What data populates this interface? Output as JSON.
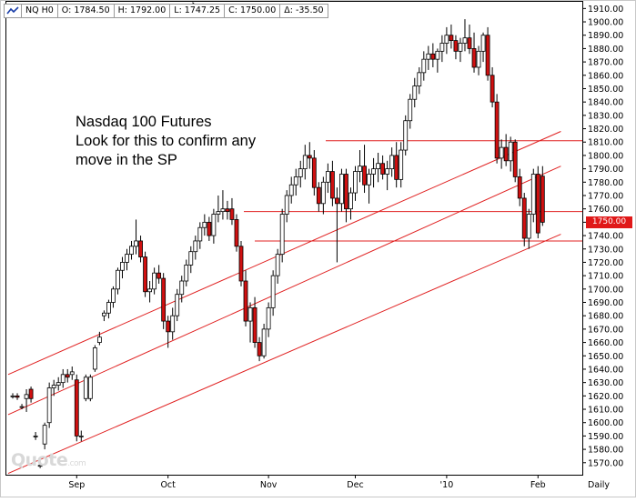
{
  "header": {
    "symbol": "NQ H0",
    "open": "O: 1784.50",
    "high": "H: 1792.00",
    "low": "L: 1747.25",
    "close": "C: 1750.00",
    "change": "Δ: -35.50"
  },
  "annotation": "Nasdaq 100 Futures\nLook for this to confirm any\nmove in the SP",
  "last_price_label": "1750.00",
  "watermark": {
    "brand": "Quote",
    "suffix": ".com"
  },
  "colors": {
    "up": "#ffffff",
    "down": "#d01010",
    "trend_lines": "#e02020",
    "last_price": "#e01818",
    "border": "#000000"
  },
  "chart_data": {
    "type": "candlestick",
    "symbol": "NQ H0",
    "interval": "Daily",
    "ylim": [
      1561,
      1915
    ],
    "y_ticks": [
      1570,
      1580,
      1590,
      1600,
      1610,
      1620,
      1630,
      1640,
      1650,
      1660,
      1670,
      1680,
      1690,
      1700,
      1710,
      1720,
      1730,
      1740,
      1750,
      1760,
      1770,
      1780,
      1790,
      1800,
      1810,
      1820,
      1830,
      1840,
      1850,
      1860,
      1870,
      1880,
      1890,
      1900,
      1910
    ],
    "x_ticks": [
      {
        "label": "Sep",
        "index": 14
      },
      {
        "label": "Oct",
        "index": 34
      },
      {
        "label": "Nov",
        "index": 56
      },
      {
        "label": "Dec",
        "index": 75
      },
      {
        "label": "'10",
        "index": 95
      },
      {
        "label": "Feb",
        "index": 115
      }
    ],
    "x_axis_label": "Daily",
    "candles": [
      {
        "o": 1620,
        "h": 1622,
        "l": 1618,
        "c": 1620
      },
      {
        "o": 1620,
        "h": 1622,
        "l": 1617,
        "c": 1619
      },
      {
        "o": 1612,
        "h": 1614,
        "l": 1610,
        "c": 1612
      },
      {
        "o": 1618,
        "h": 1625,
        "l": 1608,
        "c": 1621
      },
      {
        "o": 1625,
        "h": 1627,
        "l": 1615,
        "c": 1618
      },
      {
        "o": 1590,
        "h": 1593,
        "l": 1587,
        "c": 1590
      },
      {
        "o": 1568,
        "h": 1570,
        "l": 1566,
        "c": 1568
      },
      {
        "o": 1584,
        "h": 1600,
        "l": 1580,
        "c": 1598
      },
      {
        "o": 1600,
        "h": 1630,
        "l": 1596,
        "c": 1626
      },
      {
        "o": 1626,
        "h": 1632,
        "l": 1620,
        "c": 1628
      },
      {
        "o": 1628,
        "h": 1634,
        "l": 1624,
        "c": 1630
      },
      {
        "o": 1630,
        "h": 1640,
        "l": 1626,
        "c": 1636
      },
      {
        "o": 1636,
        "h": 1640,
        "l": 1630,
        "c": 1634
      },
      {
        "o": 1636,
        "h": 1642,
        "l": 1632,
        "c": 1638
      },
      {
        "o": 1632,
        "h": 1636,
        "l": 1586,
        "c": 1590
      },
      {
        "o": 1590,
        "h": 1594,
        "l": 1586,
        "c": 1590
      },
      {
        "o": 1618,
        "h": 1636,
        "l": 1616,
        "c": 1634
      },
      {
        "o": 1618,
        "h": 1636,
        "l": 1616,
        "c": 1634
      },
      {
        "o": 1640,
        "h": 1658,
        "l": 1638,
        "c": 1656
      },
      {
        "o": 1660,
        "h": 1668,
        "l": 1658,
        "c": 1664
      },
      {
        "o": 1680,
        "h": 1684,
        "l": 1676,
        "c": 1682
      },
      {
        "o": 1682,
        "h": 1692,
        "l": 1678,
        "c": 1690
      },
      {
        "o": 1690,
        "h": 1702,
        "l": 1686,
        "c": 1700
      },
      {
        "o": 1700,
        "h": 1716,
        "l": 1696,
        "c": 1714
      },
      {
        "o": 1714,
        "h": 1724,
        "l": 1708,
        "c": 1720
      },
      {
        "o": 1720,
        "h": 1730,
        "l": 1714,
        "c": 1726
      },
      {
        "o": 1726,
        "h": 1736,
        "l": 1722,
        "c": 1732
      },
      {
        "o": 1732,
        "h": 1752,
        "l": 1726,
        "c": 1736
      },
      {
        "o": 1736,
        "h": 1740,
        "l": 1720,
        "c": 1724
      },
      {
        "o": 1724,
        "h": 1728,
        "l": 1694,
        "c": 1698
      },
      {
        "o": 1698,
        "h": 1706,
        "l": 1690,
        "c": 1700
      },
      {
        "o": 1700,
        "h": 1716,
        "l": 1696,
        "c": 1712
      },
      {
        "o": 1712,
        "h": 1718,
        "l": 1704,
        "c": 1708
      },
      {
        "o": 1708,
        "h": 1712,
        "l": 1670,
        "c": 1676
      },
      {
        "o": 1676,
        "h": 1680,
        "l": 1656,
        "c": 1668
      },
      {
        "o": 1668,
        "h": 1686,
        "l": 1662,
        "c": 1680
      },
      {
        "o": 1680,
        "h": 1700,
        "l": 1676,
        "c": 1696
      },
      {
        "o": 1696,
        "h": 1710,
        "l": 1690,
        "c": 1706
      },
      {
        "o": 1706,
        "h": 1722,
        "l": 1702,
        "c": 1718
      },
      {
        "o": 1718,
        "h": 1732,
        "l": 1712,
        "c": 1728
      },
      {
        "o": 1728,
        "h": 1740,
        "l": 1722,
        "c": 1736
      },
      {
        "o": 1736,
        "h": 1750,
        "l": 1730,
        "c": 1746
      },
      {
        "o": 1746,
        "h": 1756,
        "l": 1740,
        "c": 1750
      },
      {
        "o": 1750,
        "h": 1754,
        "l": 1736,
        "c": 1740
      },
      {
        "o": 1740,
        "h": 1760,
        "l": 1734,
        "c": 1756
      },
      {
        "o": 1756,
        "h": 1770,
        "l": 1750,
        "c": 1758
      },
      {
        "o": 1758,
        "h": 1774,
        "l": 1752,
        "c": 1760
      },
      {
        "o": 1760,
        "h": 1766,
        "l": 1752,
        "c": 1758
      },
      {
        "o": 1760,
        "h": 1768,
        "l": 1748,
        "c": 1752
      },
      {
        "o": 1752,
        "h": 1756,
        "l": 1728,
        "c": 1732
      },
      {
        "o": 1732,
        "h": 1736,
        "l": 1702,
        "c": 1706
      },
      {
        "o": 1706,
        "h": 1714,
        "l": 1672,
        "c": 1676
      },
      {
        "o": 1676,
        "h": 1690,
        "l": 1660,
        "c": 1686
      },
      {
        "o": 1686,
        "h": 1694,
        "l": 1656,
        "c": 1660
      },
      {
        "o": 1660,
        "h": 1664,
        "l": 1646,
        "c": 1650
      },
      {
        "o": 1650,
        "h": 1674,
        "l": 1648,
        "c": 1670
      },
      {
        "o": 1670,
        "h": 1690,
        "l": 1664,
        "c": 1686
      },
      {
        "o": 1686,
        "h": 1714,
        "l": 1680,
        "c": 1710
      },
      {
        "o": 1710,
        "h": 1730,
        "l": 1704,
        "c": 1726
      },
      {
        "o": 1726,
        "h": 1760,
        "l": 1720,
        "c": 1756
      },
      {
        "o": 1756,
        "h": 1774,
        "l": 1750,
        "c": 1770
      },
      {
        "o": 1770,
        "h": 1784,
        "l": 1764,
        "c": 1778
      },
      {
        "o": 1778,
        "h": 1790,
        "l": 1770,
        "c": 1784
      },
      {
        "o": 1784,
        "h": 1796,
        "l": 1776,
        "c": 1790
      },
      {
        "o": 1790,
        "h": 1808,
        "l": 1782,
        "c": 1800
      },
      {
        "o": 1800,
        "h": 1810,
        "l": 1790,
        "c": 1798
      },
      {
        "o": 1798,
        "h": 1804,
        "l": 1770,
        "c": 1776
      },
      {
        "o": 1776,
        "h": 1780,
        "l": 1758,
        "c": 1764
      },
      {
        "o": 1764,
        "h": 1784,
        "l": 1756,
        "c": 1780
      },
      {
        "o": 1780,
        "h": 1794,
        "l": 1772,
        "c": 1788
      },
      {
        "o": 1788,
        "h": 1796,
        "l": 1762,
        "c": 1768
      },
      {
        "o": 1768,
        "h": 1776,
        "l": 1720,
        "c": 1764
      },
      {
        "o": 1764,
        "h": 1790,
        "l": 1758,
        "c": 1786
      },
      {
        "o": 1786,
        "h": 1790,
        "l": 1750,
        "c": 1760
      },
      {
        "o": 1760,
        "h": 1776,
        "l": 1752,
        "c": 1772
      },
      {
        "o": 1772,
        "h": 1792,
        "l": 1766,
        "c": 1788
      },
      {
        "o": 1788,
        "h": 1804,
        "l": 1780,
        "c": 1792
      },
      {
        "o": 1792,
        "h": 1808,
        "l": 1772,
        "c": 1778
      },
      {
        "o": 1778,
        "h": 1790,
        "l": 1764,
        "c": 1786
      },
      {
        "o": 1786,
        "h": 1798,
        "l": 1776,
        "c": 1790
      },
      {
        "o": 1790,
        "h": 1802,
        "l": 1780,
        "c": 1794
      },
      {
        "o": 1794,
        "h": 1800,
        "l": 1782,
        "c": 1786
      },
      {
        "o": 1786,
        "h": 1796,
        "l": 1774,
        "c": 1790
      },
      {
        "o": 1790,
        "h": 1806,
        "l": 1784,
        "c": 1800
      },
      {
        "o": 1800,
        "h": 1810,
        "l": 1776,
        "c": 1782
      },
      {
        "o": 1782,
        "h": 1810,
        "l": 1776,
        "c": 1804
      },
      {
        "o": 1804,
        "h": 1830,
        "l": 1800,
        "c": 1826
      },
      {
        "o": 1826,
        "h": 1846,
        "l": 1820,
        "c": 1842
      },
      {
        "o": 1842,
        "h": 1858,
        "l": 1836,
        "c": 1852
      },
      {
        "o": 1852,
        "h": 1866,
        "l": 1846,
        "c": 1862
      },
      {
        "o": 1862,
        "h": 1878,
        "l": 1856,
        "c": 1872
      },
      {
        "o": 1872,
        "h": 1882,
        "l": 1864,
        "c": 1876
      },
      {
        "o": 1876,
        "h": 1884,
        "l": 1866,
        "c": 1872
      },
      {
        "o": 1872,
        "h": 1880,
        "l": 1862,
        "c": 1878
      },
      {
        "o": 1878,
        "h": 1890,
        "l": 1870,
        "c": 1884
      },
      {
        "o": 1884,
        "h": 1896,
        "l": 1876,
        "c": 1890
      },
      {
        "o": 1890,
        "h": 1898,
        "l": 1880,
        "c": 1886
      },
      {
        "o": 1886,
        "h": 1890,
        "l": 1872,
        "c": 1878
      },
      {
        "o": 1878,
        "h": 1888,
        "l": 1870,
        "c": 1884
      },
      {
        "o": 1884,
        "h": 1902,
        "l": 1878,
        "c": 1888
      },
      {
        "o": 1888,
        "h": 1898,
        "l": 1876,
        "c": 1880
      },
      {
        "o": 1880,
        "h": 1892,
        "l": 1862,
        "c": 1866
      },
      {
        "o": 1866,
        "h": 1882,
        "l": 1860,
        "c": 1878
      },
      {
        "o": 1878,
        "h": 1892,
        "l": 1870,
        "c": 1890
      },
      {
        "o": 1890,
        "h": 1896,
        "l": 1856,
        "c": 1860
      },
      {
        "o": 1860,
        "h": 1866,
        "l": 1836,
        "c": 1840
      },
      {
        "o": 1840,
        "h": 1846,
        "l": 1794,
        "c": 1798
      },
      {
        "o": 1798,
        "h": 1812,
        "l": 1790,
        "c": 1806
      },
      {
        "o": 1806,
        "h": 1816,
        "l": 1792,
        "c": 1796
      },
      {
        "o": 1796,
        "h": 1814,
        "l": 1788,
        "c": 1810
      },
      {
        "o": 1810,
        "h": 1812,
        "l": 1780,
        "c": 1784
      },
      {
        "o": 1784,
        "h": 1790,
        "l": 1762,
        "c": 1768
      },
      {
        "o": 1768,
        "h": 1772,
        "l": 1732,
        "c": 1738
      },
      {
        "o": 1738,
        "h": 1760,
        "l": 1730,
        "c": 1756
      },
      {
        "o": 1756,
        "h": 1790,
        "l": 1750,
        "c": 1786
      },
      {
        "o": 1786,
        "h": 1792,
        "l": 1738,
        "c": 1742
      },
      {
        "o": 1784.5,
        "h": 1792,
        "l": 1747.25,
        "c": 1750
      }
    ],
    "horizontal_lines": [
      1811,
      1758,
      1736
    ],
    "trend_lines": [
      {
        "from": {
          "index": -1,
          "price": 1636
        },
        "to": {
          "index": 120,
          "price": 1818
        }
      },
      {
        "from": {
          "index": -1,
          "price": 1606
        },
        "to": {
          "index": 120,
          "price": 1792
        }
      },
      {
        "from": {
          "index": -1,
          "price": 1562
        },
        "to": {
          "index": 120,
          "price": 1741
        }
      }
    ],
    "last_price": 1750
  }
}
